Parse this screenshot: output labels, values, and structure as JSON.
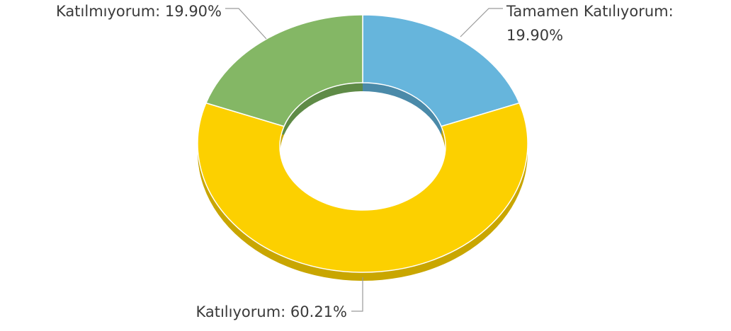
{
  "chart_data": {
    "type": "donut3d",
    "categories": [
      "Tamamen Katılıyorum:",
      "Katılıyorum:",
      "Katılmıyorum:"
    ],
    "values": [
      19.9,
      60.21,
      19.9
    ],
    "value_labels": [
      "19.90%",
      "60.21%",
      "19.90%"
    ],
    "colors": [
      "#66b5dc",
      "#fcd000",
      "#84b765"
    ],
    "side_colors": [
      "#4b8aa9",
      "#c9a600",
      "#5f8b47"
    ]
  }
}
